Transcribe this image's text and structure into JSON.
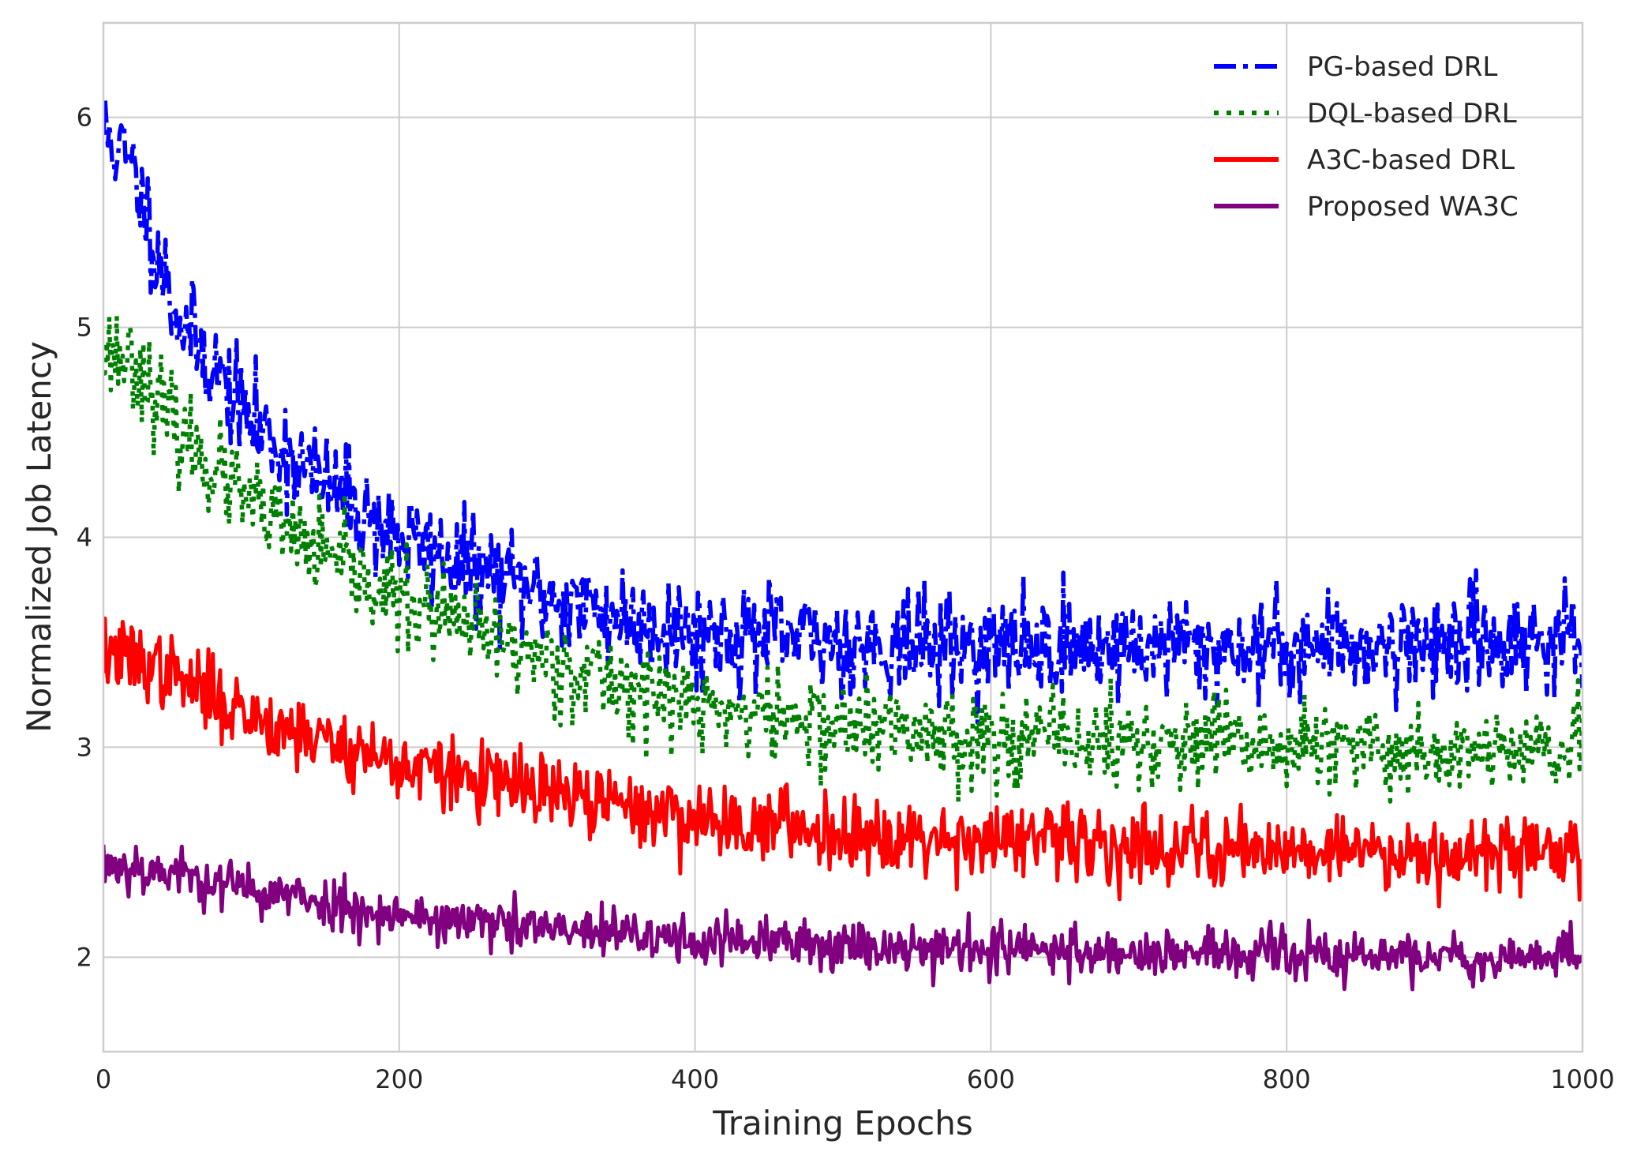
{
  "chart_data": {
    "type": "line",
    "title": "",
    "xlabel": "Training Epochs",
    "ylabel": "Normalized Job Latency",
    "xlim": [
      0,
      1000
    ],
    "ylim": [
      1.55,
      6.45
    ],
    "xticks": [
      0,
      200,
      400,
      600,
      800,
      1000
    ],
    "yticks": [
      2,
      3,
      4,
      5,
      6
    ],
    "xtick_labels": [
      "0",
      "200",
      "400",
      "600",
      "800",
      "1000"
    ],
    "ytick_labels": [
      "2",
      "3",
      "4",
      "5",
      "6"
    ],
    "grid": true,
    "legend_position": "top-right",
    "series_note": "Each series is a noisy curve sampled at every epoch; values below are smoothed trend anchors (epoch, latency) with the visible noise amplitude.",
    "series": [
      {
        "name": "PG-based DRL",
        "color": "#0000ff",
        "style": "dashdot",
        "noise": 0.22,
        "seed": 11,
        "trend": [
          [
            0,
            5.95
          ],
          [
            20,
            5.75
          ],
          [
            50,
            5.05
          ],
          [
            100,
            4.55
          ],
          [
            150,
            4.25
          ],
          [
            200,
            4.0
          ],
          [
            250,
            3.85
          ],
          [
            300,
            3.72
          ],
          [
            350,
            3.62
          ],
          [
            400,
            3.55
          ],
          [
            500,
            3.5
          ],
          [
            600,
            3.48
          ],
          [
            700,
            3.48
          ],
          [
            800,
            3.48
          ],
          [
            900,
            3.5
          ],
          [
            1000,
            3.52
          ]
        ]
      },
      {
        "name": "DQL-based DRL",
        "color": "#008000",
        "style": "dotted",
        "noise": 0.2,
        "seed": 23,
        "trend": [
          [
            0,
            4.9
          ],
          [
            20,
            4.85
          ],
          [
            50,
            4.5
          ],
          [
            100,
            4.15
          ],
          [
            150,
            3.9
          ],
          [
            200,
            3.7
          ],
          [
            250,
            3.55
          ],
          [
            300,
            3.42
          ],
          [
            350,
            3.3
          ],
          [
            400,
            3.2
          ],
          [
            500,
            3.1
          ],
          [
            600,
            3.05
          ],
          [
            700,
            3.02
          ],
          [
            800,
            3.0
          ],
          [
            900,
            2.98
          ],
          [
            1000,
            2.97
          ]
        ]
      },
      {
        "name": "A3C-based DRL",
        "color": "#ff0000",
        "style": "solid",
        "noise": 0.16,
        "seed": 37,
        "trend": [
          [
            0,
            3.45
          ],
          [
            30,
            3.4
          ],
          [
            100,
            3.15
          ],
          [
            200,
            2.92
          ],
          [
            300,
            2.78
          ],
          [
            400,
            2.66
          ],
          [
            500,
            2.6
          ],
          [
            600,
            2.56
          ],
          [
            700,
            2.53
          ],
          [
            800,
            2.52
          ],
          [
            900,
            2.5
          ],
          [
            1000,
            2.5
          ]
        ]
      },
      {
        "name": "Proposed WA3C",
        "color": "#800080",
        "style": "solid",
        "noise": 0.11,
        "seed": 53,
        "trend": [
          [
            0,
            2.45
          ],
          [
            50,
            2.4
          ],
          [
            100,
            2.32
          ],
          [
            200,
            2.2
          ],
          [
            300,
            2.13
          ],
          [
            400,
            2.08
          ],
          [
            500,
            2.06
          ],
          [
            600,
            2.04
          ],
          [
            700,
            2.02
          ],
          [
            800,
            2.01
          ],
          [
            900,
            2.0
          ],
          [
            1000,
            2.0
          ]
        ]
      }
    ]
  }
}
